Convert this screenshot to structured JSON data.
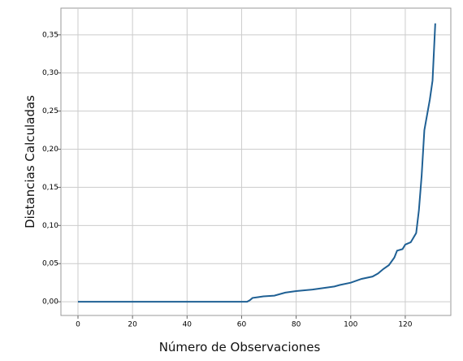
{
  "chart_data": {
    "type": "line",
    "x_label": "Número de Observaciones",
    "y_label": "Distancias Calculadas",
    "x": [
      0,
      62,
      63,
      64,
      66,
      68,
      72,
      76,
      80,
      86,
      90,
      94,
      96,
      100,
      104,
      108,
      110,
      112,
      114,
      116,
      117,
      119,
      120,
      122,
      124,
      125,
      126,
      127,
      128,
      129,
      130,
      131
    ],
    "series": [
      {
        "name": "Distancias",
        "color": "#1f6094",
        "values": [
          0,
          0,
          0.002,
          0.005,
          0.006,
          0.007,
          0.008,
          0.012,
          0.014,
          0.016,
          0.018,
          0.02,
          0.022,
          0.025,
          0.03,
          0.033,
          0.037,
          0.043,
          0.048,
          0.058,
          0.067,
          0.069,
          0.075,
          0.078,
          0.09,
          0.12,
          0.165,
          0.225,
          0.245,
          0.265,
          0.29,
          0.365
        ]
      }
    ],
    "xlim": [
      -6.25,
      136.7
    ],
    "ylim": [
      -0.018,
      0.385
    ],
    "xticks": [
      0,
      20,
      40,
      60,
      80,
      100,
      120
    ],
    "yticks": [
      {
        "value": 0,
        "label": "0,00"
      },
      {
        "value": 0.05,
        "label": "0,05"
      },
      {
        "value": 0.1,
        "label": "0,10"
      },
      {
        "value": 0.15,
        "label": "0,15"
      },
      {
        "value": 0.2,
        "label": "0,20"
      },
      {
        "value": 0.25,
        "label": "0,25"
      },
      {
        "value": 0.3,
        "label": "0,30"
      },
      {
        "value": 0.35,
        "label": "0,35"
      }
    ],
    "grid": true
  }
}
